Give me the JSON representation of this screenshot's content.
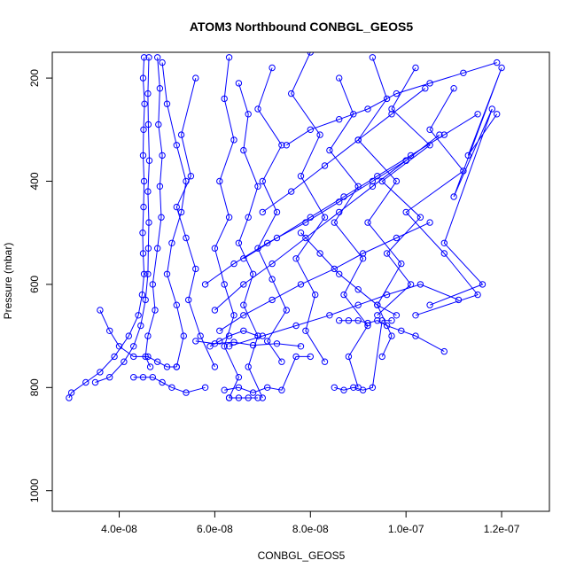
{
  "chart_data": {
    "type": "scatter",
    "title": "ATOM3 Northbound CONBGL_GEOS5",
    "xlabel": "CONBGL_GEOS5",
    "ylabel": "Pressure (mbar)",
    "xlim": [
      2.6e-08,
      1.3e-07
    ],
    "ylim": [
      1040,
      150
    ],
    "y_reversed": true,
    "grid": false,
    "legend": "none",
    "x_ticks": [
      {
        "value": 4e-08,
        "label": "4.0e-08"
      },
      {
        "value": 6e-08,
        "label": "6.0e-08"
      },
      {
        "value": 8e-08,
        "label": "8.0e-08"
      },
      {
        "value": 1e-07,
        "label": "1.0e-07"
      },
      {
        "value": 1.2e-07,
        "label": "1.2e-07"
      }
    ],
    "y_ticks": [
      {
        "value": 200,
        "label": "200"
      },
      {
        "value": 400,
        "label": "400"
      },
      {
        "value": 600,
        "label": "600"
      },
      {
        "value": 800,
        "label": "800"
      },
      {
        "value": 1000,
        "label": "1000"
      }
    ],
    "color": "#0000ff",
    "marker": "open-circle",
    "series": [
      {
        "x": [
          4.52e-08,
          4.5e-08,
          4.53e-08,
          4.51e-08,
          4.5e-08,
          4.52e-08,
          4.51e-08,
          4.49e-08,
          4.5e-08,
          4.52e-08,
          4.48e-08,
          4.4e-08,
          4.2e-08,
          3.9e-08,
          3.6e-08,
          3.3e-08,
          3e-08,
          2.95e-08
        ],
        "y": [
          160,
          200,
          250,
          300,
          350,
          400,
          450,
          500,
          540,
          580,
          620,
          660,
          700,
          740,
          770,
          790,
          810,
          820
        ]
      },
      {
        "x": [
          4.62e-08,
          4.6e-08,
          4.61e-08,
          4.63e-08,
          4.6e-08,
          4.62e-08,
          4.61e-08,
          4.6e-08,
          4.55e-08,
          4.45e-08,
          4.3e-08,
          4.1e-08,
          3.8e-08,
          3.5e-08
        ],
        "y": [
          160,
          230,
          290,
          360,
          420,
          480,
          530,
          580,
          630,
          680,
          720,
          750,
          780,
          790
        ]
      },
      {
        "x": [
          4.8e-08,
          4.85e-08,
          4.82e-08,
          4.9e-08,
          4.85e-08,
          4.88e-08,
          4.8e-08,
          4.7e-08,
          4.75e-08,
          4.6e-08,
          4.55e-08,
          4.65e-08
        ],
        "y": [
          160,
          220,
          290,
          350,
          410,
          470,
          530,
          600,
          650,
          700,
          740,
          760
        ]
      },
      {
        "x": [
          4.9e-08,
          5e-08,
          5.2e-08,
          5.4e-08,
          5.3e-08,
          5.1e-08,
          5e-08,
          5.2e-08,
          5.35e-08,
          5.2e-08
        ],
        "y": [
          170,
          250,
          330,
          400,
          460,
          520,
          580,
          640,
          700,
          760
        ]
      },
      {
        "x": [
          5.6e-08,
          5.3e-08,
          5.5e-08,
          5.2e-08,
          5.4e-08,
          5.6e-08,
          5.45e-08,
          5.7e-08,
          6e-08
        ],
        "y": [
          200,
          310,
          390,
          450,
          510,
          570,
          630,
          700,
          760
        ]
      },
      {
        "x": [
          6.3e-08,
          6.2e-08,
          6.4e-08,
          6.1e-08,
          6.3e-08,
          6e-08,
          6.2e-08,
          6.4e-08,
          6.2e-08,
          6.5e-08,
          6.3e-08
        ],
        "y": [
          160,
          240,
          320,
          400,
          470,
          530,
          600,
          660,
          720,
          780,
          820
        ]
      },
      {
        "x": [
          6.5e-08,
          6.7e-08,
          6.6e-08,
          6.9e-08,
          6.7e-08,
          6.5e-08,
          6.8e-08,
          6.6e-08,
          6.9e-08,
          6.7e-08,
          7e-08
        ],
        "y": [
          210,
          270,
          340,
          410,
          470,
          520,
          580,
          640,
          700,
          760,
          820
        ]
      },
      {
        "x": [
          7.2e-08,
          6.9e-08,
          7.4e-08,
          7e-08,
          7.3e-08,
          6.9e-08,
          7.2e-08,
          7.5e-08,
          7.1e-08,
          7.4e-08
        ],
        "y": [
          180,
          260,
          330,
          400,
          460,
          530,
          590,
          650,
          710,
          750
        ]
      },
      {
        "x": [
          8e-08,
          7.6e-08,
          8.2e-08,
          7.8e-08,
          8.3e-08,
          7.7e-08,
          8.1e-08,
          7.9e-08,
          8.3e-08
        ],
        "y": [
          150,
          230,
          310,
          390,
          470,
          550,
          620,
          690,
          750
        ]
      },
      {
        "x": [
          8.6e-08,
          8.9e-08,
          8.4e-08,
          9e-08,
          8.5e-08,
          9.1e-08,
          8.7e-08,
          9.2e-08,
          8.8e-08,
          9e-08
        ],
        "y": [
          200,
          270,
          340,
          410,
          480,
          550,
          620,
          680,
          740,
          800
        ]
      },
      {
        "x": [
          9.3e-08,
          9.6e-08,
          9e-08,
          9.8e-08,
          9.2e-08,
          9.9e-08,
          9.4e-08,
          9.7e-08,
          9.5e-08
        ],
        "y": [
          160,
          240,
          320,
          400,
          480,
          560,
          640,
          700,
          740
        ]
      },
      {
        "x": [
          1.02e-07,
          9.7e-08,
          1.05e-07,
          9.5e-08,
          1.03e-07,
          9.6e-08,
          1.01e-07,
          9.4e-08
        ],
        "y": [
          180,
          260,
          330,
          400,
          470,
          540,
          600,
          660
        ]
      },
      {
        "x": [
          1.1e-07,
          1.05e-07,
          1.12e-07,
          1e-07,
          1.08e-07,
          1.15e-07,
          1.02e-07
        ],
        "y": [
          220,
          300,
          380,
          460,
          540,
          620,
          660
        ]
      },
      {
        "x": [
          1.19e-07,
          1.13e-07,
          1.2e-07,
          1.1e-07,
          1.18e-07,
          1.08e-07,
          1.16e-07,
          1.05e-07
        ],
        "y": [
          270,
          350,
          180,
          430,
          260,
          520,
          600,
          640
        ]
      },
      {
        "x": [
          6.1e-08,
          6.6e-08,
          7.2e-08,
          7.8e-08,
          8.5e-08,
          9.1e-08,
          9.8e-08,
          1.05e-07
        ],
        "y": [
          690,
          660,
          630,
          600,
          570,
          540,
          510,
          480
        ]
      },
      {
        "x": [
          6.3e-08,
          7e-08,
          7.7e-08,
          8.4e-08,
          9e-08,
          9.6e-08,
          1.03e-07,
          1.11e-07
        ],
        "y": [
          720,
          700,
          680,
          660,
          640,
          620,
          600,
          630
        ]
      },
      {
        "x": [
          5.8e-08,
          6.4e-08,
          7.1e-08,
          7.9e-08,
          8.6e-08,
          9.3e-08,
          1e-07
        ],
        "y": [
          600,
          560,
          520,
          480,
          440,
          400,
          360
        ]
      },
      {
        "x": [
          6.6e-08,
          7.3e-08,
          8e-08,
          8.7e-08,
          9.4e-08,
          1.01e-07,
          1.08e-07,
          1.15e-07
        ],
        "y": [
          550,
          510,
          470,
          430,
          390,
          350,
          310,
          270
        ]
      },
      {
        "x": [
          5.6e-08,
          6e-08,
          6.4e-08,
          6.8e-08,
          7.3e-08,
          7.8e-08
        ],
        "y": [
          710,
          715,
          712,
          718,
          715,
          720
        ]
      },
      {
        "x": [
          6.2e-08,
          6.5e-08,
          6.8e-08,
          7.1e-08,
          7.4e-08,
          7.7e-08,
          8e-08
        ],
        "y": [
          805,
          800,
          810,
          800,
          805,
          740,
          740
        ]
      },
      {
        "x": [
          6.3e-08,
          6.5e-08,
          6.7e-08,
          6.9e-08
        ],
        "y": [
          820,
          820,
          820,
          820
        ]
      },
      {
        "x": [
          8.5e-08,
          8.7e-08,
          8.9e-08,
          9.1e-08,
          9.3e-08,
          9.5e-08,
          9.7e-08
        ],
        "y": [
          800,
          805,
          800,
          805,
          800,
          670,
          670
        ]
      },
      {
        "x": [
          8.6e-08,
          8.8e-08,
          9e-08,
          9.2e-08,
          9.4e-08,
          9.6e-08,
          9.9e-08,
          1.02e-07,
          1.08e-07
        ],
        "y": [
          670,
          670,
          670,
          675,
          670,
          680,
          690,
          700,
          730
        ]
      },
      {
        "x": [
          3.6e-08,
          3.8e-08,
          4e-08,
          4.3e-08,
          4.6e-08,
          4.8e-08,
          5e-08,
          5.2e-08
        ],
        "y": [
          650,
          690,
          720,
          740,
          740,
          750,
          760,
          760
        ]
      },
      {
        "x": [
          4.3e-08,
          4.5e-08,
          4.7e-08,
          4.9e-08,
          5.1e-08,
          5.4e-08,
          5.8e-08
        ],
        "y": [
          780,
          780,
          780,
          790,
          800,
          810,
          800
        ]
      },
      {
        "x": [
          7.5e-08,
          8e-08,
          8.6e-08,
          9.2e-08,
          9.8e-08,
          1.05e-07,
          1.12e-07,
          1.19e-07
        ],
        "y": [
          330,
          300,
          280,
          260,
          230,
          210,
          190,
          170
        ]
      },
      {
        "x": [
          7e-08,
          7.6e-08,
          8.3e-08,
          9e-08,
          9.7e-08,
          1.04e-07
        ],
        "y": [
          460,
          420,
          370,
          320,
          270,
          220
        ]
      },
      {
        "x": [
          6e-08,
          6.6e-08,
          7.2e-08,
          7.9e-08,
          8.6e-08,
          9.3e-08,
          1e-07,
          1.07e-07
        ],
        "y": [
          650,
          600,
          560,
          510,
          460,
          410,
          360,
          310
        ]
      },
      {
        "x": [
          5.9e-08,
          6.1e-08,
          6.3e-08,
          6.6e-08,
          6.9e-08
        ],
        "y": [
          720,
          710,
          700,
          690,
          700
        ]
      },
      {
        "x": [
          7.8e-08,
          8.2e-08,
          8.6e-08,
          9e-08,
          9.4e-08,
          9.8e-08
        ],
        "y": [
          500,
          540,
          580,
          610,
          640,
          660
        ]
      }
    ]
  }
}
